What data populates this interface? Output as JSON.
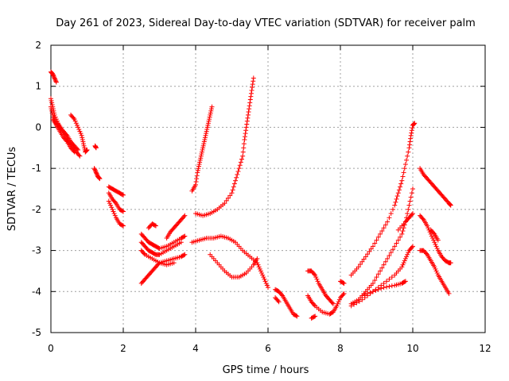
{
  "chart_data": {
    "type": "scatter",
    "title": "Day 261 of 2023, Sidereal Day-to-day VTEC variation (SDTVAR) for receiver palm",
    "xlabel": "GPS time / hours",
    "ylabel": "SDTVAR / TECUs",
    "xlim": [
      0,
      12
    ],
    "ylim": [
      -5,
      2
    ],
    "xticks": [
      "0",
      "2",
      "4",
      "6",
      "8",
      "10",
      "12"
    ],
    "yticks": [
      "-5",
      "-4",
      "-3",
      "-2",
      "-1",
      "0",
      "1",
      "2"
    ],
    "grid": true,
    "marker": "+",
    "color": "#ff0000",
    "series": [
      {
        "points": [
          [
            0.0,
            1.35
          ],
          [
            0.05,
            1.3
          ],
          [
            0.1,
            1.2
          ],
          [
            0.15,
            1.1
          ]
        ]
      },
      {
        "points": [
          [
            0.0,
            0.7
          ],
          [
            0.05,
            0.5
          ],
          [
            0.1,
            0.3
          ],
          [
            0.2,
            0.1
          ],
          [
            0.3,
            -0.05
          ],
          [
            0.4,
            -0.2
          ],
          [
            0.5,
            -0.35
          ],
          [
            0.6,
            -0.45
          ],
          [
            0.7,
            -0.6
          ],
          [
            0.8,
            -0.7
          ]
        ]
      },
      {
        "points": [
          [
            0.0,
            0.5
          ],
          [
            0.05,
            0.3
          ],
          [
            0.15,
            0.1
          ],
          [
            0.25,
            0.0
          ],
          [
            0.35,
            -0.1
          ],
          [
            0.45,
            -0.2
          ],
          [
            0.55,
            -0.35
          ],
          [
            0.65,
            -0.45
          ],
          [
            0.75,
            -0.55
          ]
        ]
      },
      {
        "points": [
          [
            0.05,
            0.2
          ],
          [
            0.15,
            0.05
          ],
          [
            0.25,
            -0.1
          ],
          [
            0.35,
            -0.25
          ],
          [
            0.45,
            -0.35
          ],
          [
            0.55,
            -0.5
          ],
          [
            0.65,
            -0.6
          ]
        ]
      },
      {
        "points": [
          [
            0.55,
            0.3
          ],
          [
            0.65,
            0.2
          ],
          [
            0.75,
            0.0
          ],
          [
            0.85,
            -0.2
          ],
          [
            0.9,
            -0.4
          ],
          [
            0.95,
            -0.6
          ],
          [
            1.0,
            -0.55
          ]
        ]
      },
      {
        "points": [
          [
            1.22,
            -0.45
          ],
          [
            1.25,
            -0.5
          ]
        ]
      },
      {
        "points": [
          [
            1.2,
            -1.0
          ],
          [
            1.25,
            -1.1
          ],
          [
            1.3,
            -1.2
          ],
          [
            1.35,
            -1.25
          ]
        ]
      },
      {
        "points": [
          [
            1.6,
            -1.45
          ],
          [
            1.7,
            -1.5
          ],
          [
            1.8,
            -1.55
          ],
          [
            1.9,
            -1.6
          ],
          [
            2.0,
            -1.65
          ]
        ]
      },
      {
        "points": [
          [
            1.6,
            -1.6
          ],
          [
            1.7,
            -1.75
          ],
          [
            1.8,
            -1.85
          ],
          [
            1.9,
            -2.0
          ],
          [
            2.0,
            -2.05
          ]
        ]
      },
      {
        "points": [
          [
            1.6,
            -1.8
          ],
          [
            1.7,
            -2.0
          ],
          [
            1.8,
            -2.2
          ],
          [
            1.9,
            -2.35
          ],
          [
            2.0,
            -2.4
          ]
        ]
      },
      {
        "points": [
          [
            2.5,
            -3.8
          ],
          [
            2.6,
            -3.7
          ],
          [
            2.7,
            -3.6
          ],
          [
            2.8,
            -3.5
          ],
          [
            2.9,
            -3.4
          ],
          [
            3.0,
            -3.3
          ],
          [
            3.2,
            -3.25
          ],
          [
            3.4,
            -3.2
          ],
          [
            3.6,
            -3.15
          ],
          [
            3.7,
            -3.1
          ]
        ]
      },
      {
        "points": [
          [
            2.5,
            -2.6
          ],
          [
            2.6,
            -2.7
          ],
          [
            2.7,
            -2.8
          ],
          [
            2.8,
            -2.85
          ],
          [
            2.9,
            -2.9
          ],
          [
            3.0,
            -2.95
          ],
          [
            3.2,
            -2.9
          ],
          [
            3.4,
            -2.8
          ],
          [
            3.6,
            -2.7
          ],
          [
            3.7,
            -2.65
          ]
        ]
      },
      {
        "points": [
          [
            2.5,
            -2.8
          ],
          [
            2.6,
            -2.9
          ],
          [
            2.7,
            -3.0
          ],
          [
            2.8,
            -3.05
          ],
          [
            2.9,
            -3.1
          ],
          [
            3.0,
            -3.1
          ],
          [
            3.2,
            -3.0
          ],
          [
            3.4,
            -2.9
          ],
          [
            3.6,
            -2.8
          ]
        ]
      },
      {
        "points": [
          [
            2.5,
            -3.0
          ],
          [
            2.6,
            -3.1
          ],
          [
            2.8,
            -3.2
          ],
          [
            3.0,
            -3.3
          ],
          [
            3.2,
            -3.35
          ],
          [
            3.4,
            -3.3
          ]
        ]
      },
      {
        "points": [
          [
            2.7,
            -2.45
          ],
          [
            2.8,
            -2.35
          ],
          [
            2.9,
            -2.4
          ]
        ]
      },
      {
        "points": [
          [
            3.2,
            -2.7
          ],
          [
            3.3,
            -2.55
          ],
          [
            3.4,
            -2.45
          ],
          [
            3.5,
            -2.35
          ],
          [
            3.6,
            -2.25
          ],
          [
            3.7,
            -2.15
          ]
        ]
      },
      {
        "points": [
          [
            3.9,
            -1.55
          ],
          [
            4.0,
            -1.4
          ],
          [
            4.05,
            -1.1
          ],
          [
            4.1,
            -0.9
          ],
          [
            4.15,
            -0.7
          ],
          [
            4.2,
            -0.5
          ],
          [
            4.25,
            -0.3
          ],
          [
            4.3,
            -0.1
          ],
          [
            4.35,
            0.1
          ],
          [
            4.4,
            0.3
          ],
          [
            4.45,
            0.5
          ]
        ]
      },
      {
        "points": [
          [
            4.0,
            -2.1
          ],
          [
            4.2,
            -2.15
          ],
          [
            4.4,
            -2.1
          ],
          [
            4.6,
            -2.0
          ],
          [
            4.8,
            -1.85
          ],
          [
            5.0,
            -1.6
          ],
          [
            5.1,
            -1.3
          ],
          [
            5.2,
            -1.0
          ],
          [
            5.3,
            -0.7
          ],
          [
            5.35,
            -0.3
          ],
          [
            5.4,
            0.0
          ],
          [
            5.45,
            0.3
          ],
          [
            5.5,
            0.6
          ],
          [
            5.55,
            0.9
          ],
          [
            5.6,
            1.2
          ]
        ]
      },
      {
        "points": [
          [
            3.9,
            -2.8
          ],
          [
            4.1,
            -2.75
          ],
          [
            4.3,
            -2.7
          ],
          [
            4.5,
            -2.7
          ],
          [
            4.7,
            -2.65
          ],
          [
            4.9,
            -2.7
          ],
          [
            5.1,
            -2.8
          ],
          [
            5.3,
            -3.0
          ],
          [
            5.5,
            -3.15
          ],
          [
            5.7,
            -3.3
          ],
          [
            5.8,
            -3.5
          ],
          [
            5.9,
            -3.7
          ],
          [
            6.0,
            -3.9
          ]
        ]
      },
      {
        "points": [
          [
            4.4,
            -3.1
          ],
          [
            4.6,
            -3.3
          ],
          [
            4.8,
            -3.5
          ],
          [
            5.0,
            -3.65
          ],
          [
            5.2,
            -3.65
          ],
          [
            5.4,
            -3.55
          ],
          [
            5.6,
            -3.35
          ],
          [
            5.7,
            -3.2
          ]
        ]
      },
      {
        "points": [
          [
            6.2,
            -3.95
          ],
          [
            6.3,
            -4.0
          ],
          [
            6.4,
            -4.1
          ],
          [
            6.5,
            -4.25
          ],
          [
            6.6,
            -4.4
          ],
          [
            6.7,
            -4.55
          ],
          [
            6.8,
            -4.6
          ]
        ]
      },
      {
        "points": [
          [
            6.2,
            -4.15
          ],
          [
            6.3,
            -4.25
          ]
        ]
      },
      {
        "points": [
          [
            7.1,
            -3.5
          ],
          [
            7.2,
            -3.5
          ],
          [
            7.3,
            -3.6
          ],
          [
            7.4,
            -3.8
          ],
          [
            7.5,
            -3.95
          ],
          [
            7.6,
            -4.1
          ],
          [
            7.7,
            -4.2
          ],
          [
            7.8,
            -4.3
          ]
        ]
      },
      {
        "points": [
          [
            7.1,
            -4.1
          ],
          [
            7.2,
            -4.25
          ],
          [
            7.3,
            -4.35
          ],
          [
            7.5,
            -4.5
          ],
          [
            7.7,
            -4.55
          ],
          [
            7.8,
            -4.5
          ],
          [
            7.9,
            -4.35
          ],
          [
            8.0,
            -4.15
          ],
          [
            8.1,
            -4.05
          ]
        ]
      },
      {
        "points": [
          [
            7.2,
            -4.65
          ],
          [
            7.3,
            -4.6
          ]
        ]
      },
      {
        "points": [
          [
            8.0,
            -3.75
          ],
          [
            8.1,
            -3.8
          ]
        ]
      },
      {
        "points": [
          [
            8.3,
            -3.6
          ],
          [
            8.5,
            -3.4
          ],
          [
            8.7,
            -3.15
          ],
          [
            8.9,
            -2.9
          ],
          [
            9.1,
            -2.6
          ],
          [
            9.3,
            -2.3
          ],
          [
            9.5,
            -1.9
          ],
          [
            9.6,
            -1.6
          ],
          [
            9.7,
            -1.3
          ],
          [
            9.8,
            -0.9
          ],
          [
            9.9,
            -0.5
          ],
          [
            9.95,
            -0.2
          ],
          [
            10.0,
            0.05
          ],
          [
            10.05,
            0.1
          ]
        ]
      },
      {
        "points": [
          [
            8.3,
            -4.3
          ],
          [
            8.5,
            -4.2
          ],
          [
            8.7,
            -4.0
          ],
          [
            8.9,
            -3.8
          ],
          [
            9.1,
            -3.5
          ],
          [
            9.3,
            -3.2
          ],
          [
            9.5,
            -2.9
          ],
          [
            9.7,
            -2.6
          ],
          [
            9.8,
            -2.3
          ],
          [
            9.9,
            -1.9
          ],
          [
            10.0,
            -1.5
          ]
        ]
      },
      {
        "points": [
          [
            8.3,
            -4.35
          ],
          [
            8.6,
            -4.2
          ],
          [
            8.9,
            -4.0
          ],
          [
            9.2,
            -3.8
          ],
          [
            9.5,
            -3.6
          ],
          [
            9.7,
            -3.4
          ],
          [
            9.8,
            -3.2
          ],
          [
            9.9,
            -3.0
          ],
          [
            10.0,
            -2.9
          ]
        ]
      },
      {
        "points": [
          [
            8.6,
            -4.1
          ],
          [
            8.9,
            -4.0
          ],
          [
            9.2,
            -3.9
          ],
          [
            9.5,
            -3.85
          ],
          [
            9.7,
            -3.8
          ],
          [
            9.8,
            -3.75
          ]
        ]
      },
      {
        "points": [
          [
            9.6,
            -2.5
          ],
          [
            9.8,
            -2.3
          ],
          [
            9.9,
            -2.2
          ],
          [
            10.0,
            -2.1
          ]
        ]
      },
      {
        "points": [
          [
            10.2,
            -1.0
          ],
          [
            10.3,
            -1.15
          ],
          [
            10.4,
            -1.25
          ],
          [
            10.5,
            -1.35
          ],
          [
            10.6,
            -1.45
          ],
          [
            10.7,
            -1.55
          ],
          [
            10.8,
            -1.65
          ],
          [
            10.9,
            -1.75
          ],
          [
            11.0,
            -1.85
          ],
          [
            11.05,
            -1.9
          ]
        ]
      },
      {
        "points": [
          [
            10.2,
            -2.15
          ],
          [
            10.3,
            -2.25
          ],
          [
            10.4,
            -2.4
          ],
          [
            10.5,
            -2.6
          ],
          [
            10.6,
            -2.8
          ],
          [
            10.7,
            -3.0
          ],
          [
            10.8,
            -3.15
          ],
          [
            10.9,
            -3.25
          ],
          [
            11.0,
            -3.3
          ],
          [
            11.05,
            -3.3
          ]
        ]
      },
      {
        "points": [
          [
            10.2,
            -3.0
          ],
          [
            10.3,
            -3.0
          ],
          [
            10.4,
            -3.1
          ],
          [
            10.5,
            -3.25
          ],
          [
            10.6,
            -3.4
          ],
          [
            10.7,
            -3.6
          ],
          [
            10.8,
            -3.75
          ],
          [
            10.9,
            -3.9
          ],
          [
            11.0,
            -4.05
          ]
        ]
      },
      {
        "points": [
          [
            10.5,
            -2.5
          ],
          [
            10.6,
            -2.6
          ],
          [
            10.7,
            -2.75
          ]
        ]
      }
    ]
  }
}
